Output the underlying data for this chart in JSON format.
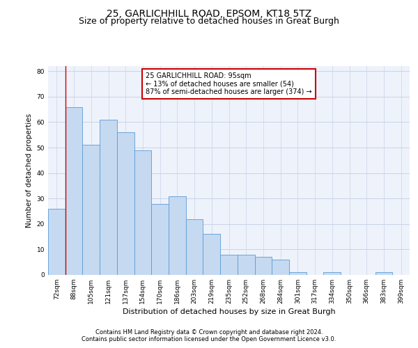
{
  "title": "25, GARLICHHILL ROAD, EPSOM, KT18 5TZ",
  "subtitle": "Size of property relative to detached houses in Great Burgh",
  "xlabel": "Distribution of detached houses by size in Great Burgh",
  "ylabel": "Number of detached properties",
  "categories": [
    "72sqm",
    "88sqm",
    "105sqm",
    "121sqm",
    "137sqm",
    "154sqm",
    "170sqm",
    "186sqm",
    "203sqm",
    "219sqm",
    "235sqm",
    "252sqm",
    "268sqm",
    "284sqm",
    "301sqm",
    "317sqm",
    "334sqm",
    "350sqm",
    "366sqm",
    "383sqm",
    "399sqm"
  ],
  "values": [
    26,
    66,
    51,
    61,
    56,
    49,
    28,
    31,
    22,
    16,
    8,
    8,
    7,
    6,
    1,
    0,
    1,
    0,
    0,
    1,
    0
  ],
  "bar_color": "#c5d9f1",
  "bar_edge_color": "#5b9bd5",
  "vline_color": "#cc0000",
  "vline_x_index": 1,
  "annotation_text": "25 GARLICHHILL ROAD: 95sqm\n← 13% of detached houses are smaller (54)\n87% of semi-detached houses are larger (374) →",
  "annotation_box_color": "white",
  "annotation_box_edge_color": "#cc0000",
  "ylim": [
    0,
    82
  ],
  "yticks": [
    0,
    10,
    20,
    30,
    40,
    50,
    60,
    70,
    80
  ],
  "grid_color": "#c8d4e8",
  "background_color": "#eef2fb",
  "footer_line1": "Contains HM Land Registry data © Crown copyright and database right 2024.",
  "footer_line2": "Contains public sector information licensed under the Open Government Licence v3.0.",
  "title_fontsize": 10,
  "subtitle_fontsize": 9,
  "xlabel_fontsize": 8,
  "ylabel_fontsize": 7.5,
  "tick_fontsize": 6.5,
  "annotation_fontsize": 7,
  "footer_fontsize": 6
}
